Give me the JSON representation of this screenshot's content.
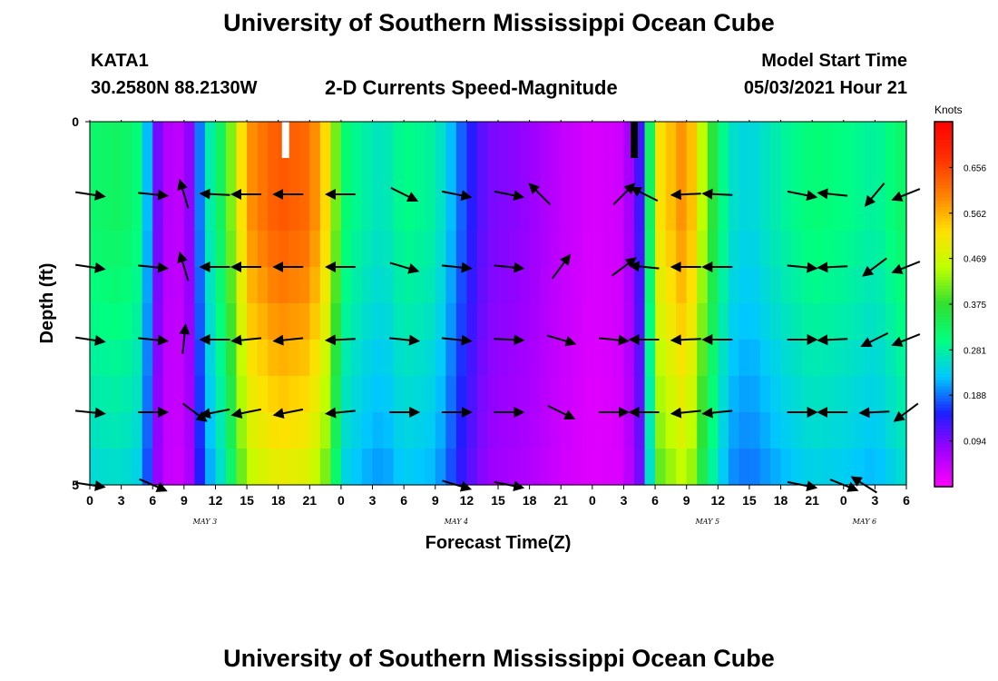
{
  "header": {
    "title": "University of Southern Mississippi Ocean Cube",
    "station": "KATA1",
    "coords": "30.2580N  88.2130W",
    "subtitle": "2-D Currents Speed-Magnitude",
    "model_start_label": "Model Start Time",
    "model_start_value": "05/03/2021 Hour 21"
  },
  "footer": {
    "title": "University of Southern Mississippi Ocean Cube"
  },
  "chart_data": {
    "type": "heatmap",
    "title": "2-D Currents Speed-Magnitude",
    "xlabel": "Forecast Time(Z)",
    "ylabel": "Depth (ft)",
    "x_tick_labels": [
      "0",
      "3",
      "6",
      "9",
      "12",
      "15",
      "18",
      "21",
      "0",
      "3",
      "6",
      "9",
      "12",
      "15",
      "18",
      "21",
      "0",
      "3",
      "6",
      "9",
      "12",
      "15",
      "18",
      "21",
      "0",
      "3",
      "6"
    ],
    "date_labels": [
      {
        "text": "MAY 3",
        "hours": 11
      },
      {
        "text": "MAY 4",
        "hours": 35
      },
      {
        "text": "MAY 5",
        "hours": 59
      },
      {
        "text": "MAY 6",
        "hours": 74
      }
    ],
    "xlim_hours": [
      0,
      78
    ],
    "y_tick_labels": [
      "0",
      "5"
    ],
    "ylim_ft": [
      0,
      5
    ],
    "colorbar": {
      "unit": "Knots",
      "ticks": [
        0.094,
        0.188,
        0.281,
        0.375,
        0.469,
        0.562,
        0.656
      ],
      "range": [
        0.0,
        0.75
      ],
      "colors": [
        "#ff00ff",
        "#a000ff",
        "#1e1eff",
        "#00c8ff",
        "#00ff80",
        "#30e030",
        "#c0ff00",
        "#ffe000",
        "#ff8000",
        "#ff3000",
        "#ff0000"
      ]
    },
    "depth_rows_ft": [
      0.25,
      0.75,
      1.25,
      1.75,
      2.25,
      2.75,
      3.25,
      3.75,
      4.25,
      4.75
    ],
    "speed_profile": [
      {
        "h": 0,
        "v": 0.32
      },
      {
        "h": 3,
        "v": 0.33
      },
      {
        "h": 5,
        "v": 0.3
      },
      {
        "h": 6,
        "v": 0.14
      },
      {
        "h": 7,
        "v": 0.06
      },
      {
        "h": 9,
        "v": 0.05
      },
      {
        "h": 10,
        "v": 0.12
      },
      {
        "h": 11,
        "v": 0.26
      },
      {
        "h": 12,
        "v": 0.29
      },
      {
        "h": 13,
        "v": 0.37
      },
      {
        "h": 14,
        "v": 0.46
      },
      {
        "h": 15,
        "v": 0.58
      },
      {
        "h": 18,
        "v": 0.64
      },
      {
        "h": 21,
        "v": 0.62
      },
      {
        "h": 23,
        "v": 0.5
      },
      {
        "h": 24,
        "v": 0.32
      },
      {
        "h": 26,
        "v": 0.28
      },
      {
        "h": 28,
        "v": 0.26
      },
      {
        "h": 30,
        "v": 0.3
      },
      {
        "h": 33,
        "v": 0.28
      },
      {
        "h": 36,
        "v": 0.16
      },
      {
        "h": 38,
        "v": 0.1
      },
      {
        "h": 42,
        "v": 0.08
      },
      {
        "h": 45,
        "v": 0.05
      },
      {
        "h": 48,
        "v": 0.03
      },
      {
        "h": 51,
        "v": 0.04
      },
      {
        "h": 53,
        "v": 0.16
      },
      {
        "h": 54,
        "v": 0.5
      },
      {
        "h": 57,
        "v": 0.6
      },
      {
        "h": 59,
        "v": 0.4
      },
      {
        "h": 61,
        "v": 0.26
      },
      {
        "h": 63,
        "v": 0.24
      },
      {
        "h": 66,
        "v": 0.28
      },
      {
        "h": 69,
        "v": 0.31
      },
      {
        "h": 72,
        "v": 0.3
      },
      {
        "h": 75,
        "v": 0.28
      },
      {
        "h": 78,
        "v": 0.33
      }
    ],
    "depth_factor": [
      1.0,
      1.0,
      1.0,
      0.98,
      0.95,
      0.92,
      0.88,
      0.85,
      0.82,
      0.78
    ],
    "vectors": [
      {
        "h": 0,
        "d": 1,
        "dx": 1,
        "dy": 0.15
      },
      {
        "h": 6,
        "d": 1,
        "dx": 1,
        "dy": 0.1
      },
      {
        "h": 9,
        "d": 1,
        "dx": -0.3,
        "dy": -1
      },
      {
        "h": 12,
        "d": 1,
        "dx": -1,
        "dy": -0.05
      },
      {
        "h": 15,
        "d": 1,
        "dx": -1,
        "dy": 0
      },
      {
        "h": 19,
        "d": 1,
        "dx": -1,
        "dy": 0
      },
      {
        "h": 24,
        "d": 1,
        "dx": -1,
        "dy": 0
      },
      {
        "h": 30,
        "d": 1,
        "dx": 1,
        "dy": 0.5
      },
      {
        "h": 35,
        "d": 1,
        "dx": 1,
        "dy": 0.2
      },
      {
        "h": 40,
        "d": 1,
        "dx": 1,
        "dy": 0.2
      },
      {
        "h": 43,
        "d": 1,
        "dx": -0.8,
        "dy": -0.8
      },
      {
        "h": 51,
        "d": 1,
        "dx": 0.8,
        "dy": -0.8
      },
      {
        "h": 53,
        "d": 1,
        "dx": -1,
        "dy": -0.5
      },
      {
        "h": 57,
        "d": 1,
        "dx": -1,
        "dy": 0.05
      },
      {
        "h": 60,
        "d": 1,
        "dx": -1,
        "dy": -0.05
      },
      {
        "h": 68,
        "d": 1,
        "dx": 1,
        "dy": 0.2
      },
      {
        "h": 71,
        "d": 1,
        "dx": -1,
        "dy": -0.1
      },
      {
        "h": 75,
        "d": 1,
        "dx": -0.5,
        "dy": 0.6
      },
      {
        "h": 78,
        "d": 1,
        "dx": -1,
        "dy": 0.4
      },
      {
        "h": 0,
        "d": 2,
        "dx": 1,
        "dy": 0.15
      },
      {
        "h": 6,
        "d": 2,
        "dx": 1,
        "dy": 0.1
      },
      {
        "h": 9,
        "d": 2,
        "dx": -0.3,
        "dy": -1
      },
      {
        "h": 12,
        "d": 2,
        "dx": -1,
        "dy": 0
      },
      {
        "h": 15,
        "d": 2,
        "dx": -1,
        "dy": 0
      },
      {
        "h": 19,
        "d": 2,
        "dx": -1,
        "dy": 0
      },
      {
        "h": 24,
        "d": 2,
        "dx": -1,
        "dy": 0
      },
      {
        "h": 30,
        "d": 2,
        "dx": 1,
        "dy": 0.3
      },
      {
        "h": 35,
        "d": 2,
        "dx": 1,
        "dy": 0.1
      },
      {
        "h": 40,
        "d": 2,
        "dx": 1,
        "dy": 0.1
      },
      {
        "h": 45,
        "d": 2,
        "dx": 0.6,
        "dy": -0.8
      },
      {
        "h": 51,
        "d": 2,
        "dx": 0.8,
        "dy": -0.6
      },
      {
        "h": 53,
        "d": 2,
        "dx": -1,
        "dy": -0.1
      },
      {
        "h": 57,
        "d": 2,
        "dx": -1,
        "dy": 0
      },
      {
        "h": 60,
        "d": 2,
        "dx": -1,
        "dy": 0
      },
      {
        "h": 68,
        "d": 2,
        "dx": 1,
        "dy": 0.1
      },
      {
        "h": 71,
        "d": 2,
        "dx": -1,
        "dy": 0.05
      },
      {
        "h": 75,
        "d": 2,
        "dx": -0.8,
        "dy": 0.6
      },
      {
        "h": 78,
        "d": 2,
        "dx": -1,
        "dy": 0.4
      },
      {
        "h": 0,
        "d": 3,
        "dx": 1,
        "dy": 0.15
      },
      {
        "h": 6,
        "d": 3,
        "dx": 1,
        "dy": 0.1
      },
      {
        "h": 9,
        "d": 3,
        "dx": 0.1,
        "dy": -1
      },
      {
        "h": 12,
        "d": 3,
        "dx": -1,
        "dy": 0
      },
      {
        "h": 15,
        "d": 3,
        "dx": -1,
        "dy": 0.1
      },
      {
        "h": 19,
        "d": 3,
        "dx": -1,
        "dy": 0.1
      },
      {
        "h": 24,
        "d": 3,
        "dx": -1,
        "dy": 0.05
      },
      {
        "h": 30,
        "d": 3,
        "dx": 1,
        "dy": 0.1
      },
      {
        "h": 35,
        "d": 3,
        "dx": 1,
        "dy": 0.1
      },
      {
        "h": 40,
        "d": 3,
        "dx": 1,
        "dy": 0.05
      },
      {
        "h": 45,
        "d": 3,
        "dx": 1,
        "dy": 0.3
      },
      {
        "h": 50,
        "d": 3,
        "dx": 1,
        "dy": 0.1
      },
      {
        "h": 53,
        "d": 3,
        "dx": -1,
        "dy": 0
      },
      {
        "h": 57,
        "d": 3,
        "dx": -1,
        "dy": 0.05
      },
      {
        "h": 60,
        "d": 3,
        "dx": -1,
        "dy": 0
      },
      {
        "h": 68,
        "d": 3,
        "dx": 1,
        "dy": 0
      },
      {
        "h": 71,
        "d": 3,
        "dx": -1,
        "dy": 0.05
      },
      {
        "h": 75,
        "d": 3,
        "dx": -1,
        "dy": 0.5
      },
      {
        "h": 78,
        "d": 3,
        "dx": -1,
        "dy": 0.4
      },
      {
        "h": 0,
        "d": 4,
        "dx": 1,
        "dy": 0.1
      },
      {
        "h": 6,
        "d": 4,
        "dx": 1,
        "dy": 0
      },
      {
        "h": 10,
        "d": 4,
        "dx": 0.8,
        "dy": 0.6
      },
      {
        "h": 12,
        "d": 4,
        "dx": -1,
        "dy": 0.2
      },
      {
        "h": 15,
        "d": 4,
        "dx": -1,
        "dy": 0.2
      },
      {
        "h": 19,
        "d": 4,
        "dx": -1,
        "dy": 0.2
      },
      {
        "h": 24,
        "d": 4,
        "dx": -1,
        "dy": 0.1
      },
      {
        "h": 30,
        "d": 4,
        "dx": 1,
        "dy": 0
      },
      {
        "h": 35,
        "d": 4,
        "dx": 1,
        "dy": 0
      },
      {
        "h": 40,
        "d": 4,
        "dx": 1,
        "dy": 0
      },
      {
        "h": 45,
        "d": 4,
        "dx": 1,
        "dy": 0.5
      },
      {
        "h": 50,
        "d": 4,
        "dx": 1,
        "dy": 0
      },
      {
        "h": 53,
        "d": 4,
        "dx": -1,
        "dy": 0
      },
      {
        "h": 57,
        "d": 4,
        "dx": -1,
        "dy": 0.1
      },
      {
        "h": 60,
        "d": 4,
        "dx": -1,
        "dy": 0.1
      },
      {
        "h": 68,
        "d": 4,
        "dx": 1,
        "dy": 0
      },
      {
        "h": 71,
        "d": 4,
        "dx": -1,
        "dy": 0
      },
      {
        "h": 75,
        "d": 4,
        "dx": -1,
        "dy": 0.05
      },
      {
        "h": 78,
        "d": 4,
        "dx": -0.8,
        "dy": 0.6
      },
      {
        "h": 0,
        "d": 5,
        "dx": 1,
        "dy": 0.15
      },
      {
        "h": 6,
        "d": 5,
        "dx": 0.7,
        "dy": 0.3
      },
      {
        "h": 35,
        "d": 5,
        "dx": 1,
        "dy": 0.3
      },
      {
        "h": 40,
        "d": 5,
        "dx": 1,
        "dy": 0.2
      },
      {
        "h": 68,
        "d": 5,
        "dx": 1,
        "dy": 0.2
      },
      {
        "h": 72,
        "d": 5,
        "dx": 1,
        "dy": 0.4
      },
      {
        "h": 74,
        "d": 5,
        "dx": -0.8,
        "dy": -0.5
      }
    ],
    "missing_markers": [
      {
        "h": 18.7,
        "from_ft": 0,
        "to_ft": 0.5,
        "color": "#ffffff"
      },
      {
        "h": 52.0,
        "from_ft": 0,
        "to_ft": 0.5,
        "color": "#000000"
      }
    ]
  }
}
